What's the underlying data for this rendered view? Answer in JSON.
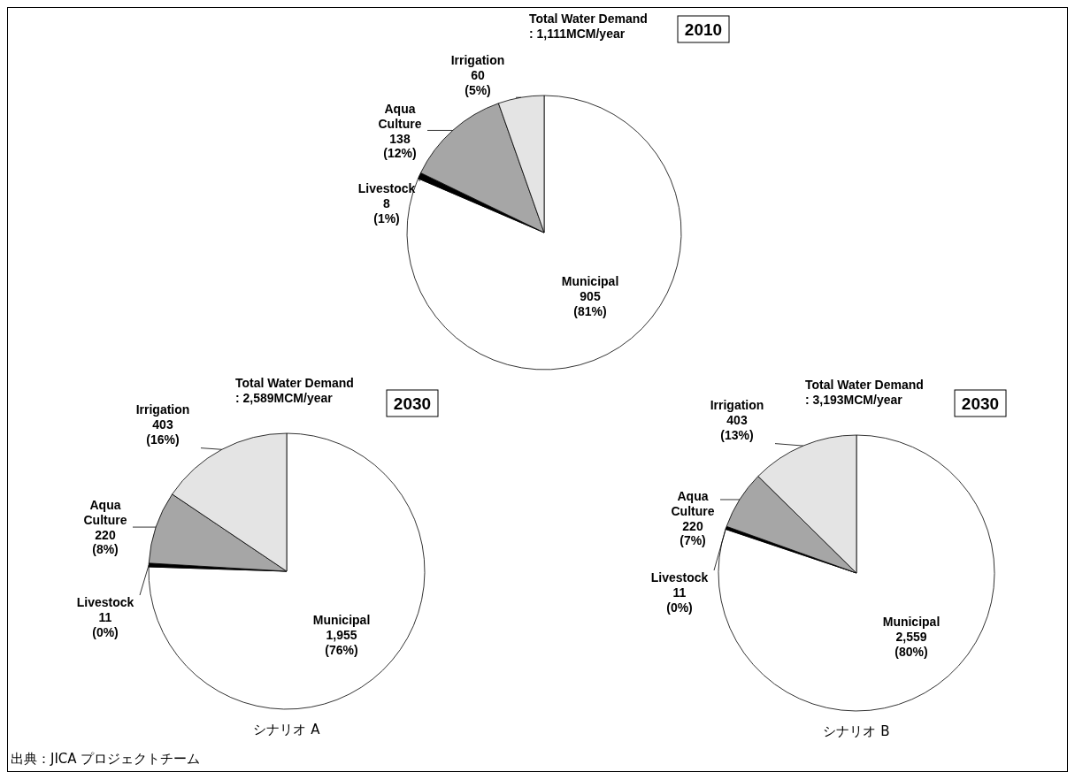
{
  "chart_data": [
    {
      "type": "pie",
      "title": "Total Water Demand\n: 1,111MCM/year",
      "subtitle": "2010",
      "categories": [
        "Municipal",
        "Livestock",
        "Aqua Culture",
        "Irrigation"
      ],
      "values": [
        905,
        8,
        138,
        60
      ],
      "value_labels": [
        "905\n(81%)",
        "8\n(1%)",
        "138\n(12%)",
        "60\n(5%)"
      ],
      "colors": [
        "#ffffff",
        "#000000",
        "#a6a6a6",
        "#e4e4e4"
      ]
    },
    {
      "type": "pie",
      "title": "Total Water Demand\n: 2,589MCM/year",
      "subtitle": "2030",
      "xlabel": "シナリオ A",
      "categories": [
        "Municipal",
        "Livestock",
        "Aqua Culture",
        "Irrigation"
      ],
      "values": [
        1955,
        11,
        220,
        403
      ],
      "value_labels": [
        "1,955\n(76%)",
        "11\n(0%)",
        "220\n(8%)",
        "403\n(16%)"
      ],
      "colors": [
        "#ffffff",
        "#000000",
        "#a6a6a6",
        "#e4e4e4"
      ],
      "annotations": [
        "出典：JICA プロジェクトチーム"
      ]
    },
    {
      "type": "pie",
      "title": "Total Water Demand\n: 3,193MCM/year",
      "subtitle": "2030",
      "xlabel": "シナリオ B",
      "categories": [
        "Municipal",
        "Livestock",
        "Aqua Culture",
        "Irrigation"
      ],
      "values": [
        2559,
        11,
        220,
        403
      ],
      "value_labels": [
        "2,559\n(80%)",
        "11\n(0%)",
        "220\n(7%)",
        "403\n(13%)"
      ],
      "colors": [
        "#ffffff",
        "#000000",
        "#a6a6a6",
        "#e4e4e4"
      ]
    }
  ]
}
